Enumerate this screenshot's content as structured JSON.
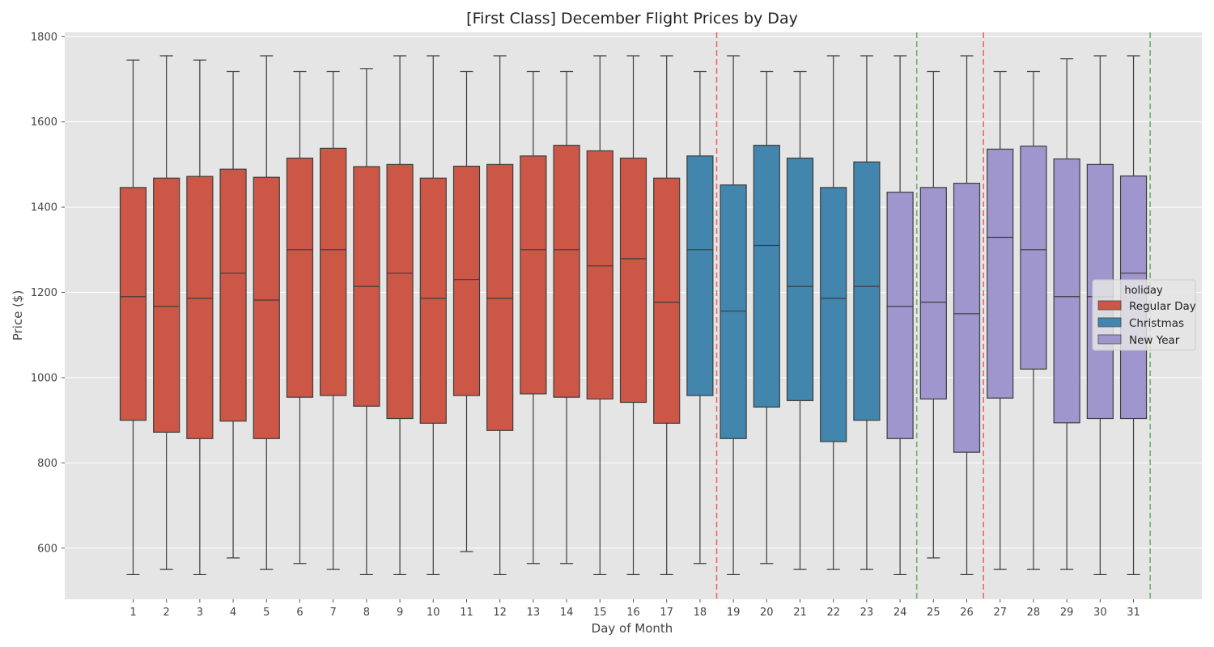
{
  "chart_data": {
    "type": "box",
    "title": "[First Class] December Flight Prices by Day",
    "xlabel": "Day of Month",
    "ylabel": "Price ($)",
    "ylim": [
      480,
      1810
    ],
    "yticks": [
      600,
      800,
      1000,
      1200,
      1400,
      1600,
      1800
    ],
    "grid": true,
    "legend": {
      "title": "holiday",
      "placement": "center-right",
      "entries": [
        {
          "name": "Regular Day",
          "color": "#cc5747"
        },
        {
          "name": "Christmas",
          "color": "#4285ad"
        },
        {
          "name": "New Year",
          "color": "#9e96cc"
        }
      ]
    },
    "reference_lines": [
      {
        "x": 18.5,
        "color": "#ee6666"
      },
      {
        "x": 24.5,
        "color": "#6ab06a"
      },
      {
        "x": 26.5,
        "color": "#ee6666"
      },
      {
        "x": 31.5,
        "color": "#6ab06a"
      }
    ],
    "boxes": [
      {
        "day": "1",
        "holiday": "Regular Day",
        "min": 538,
        "q1": 900,
        "median": 1190,
        "q3": 1446,
        "max": 1745
      },
      {
        "day": "2",
        "holiday": "Regular Day",
        "min": 550,
        "q1": 872,
        "median": 1167,
        "q3": 1468,
        "max": 1755
      },
      {
        "day": "3",
        "holiday": "Regular Day",
        "min": 538,
        "q1": 857,
        "median": 1186,
        "q3": 1472,
        "max": 1745
      },
      {
        "day": "4",
        "holiday": "Regular Day",
        "min": 577,
        "q1": 898,
        "median": 1245,
        "q3": 1489,
        "max": 1718
      },
      {
        "day": "5",
        "holiday": "Regular Day",
        "min": 550,
        "q1": 857,
        "median": 1182,
        "q3": 1470,
        "max": 1755
      },
      {
        "day": "6",
        "holiday": "Regular Day",
        "min": 564,
        "q1": 954,
        "median": 1300,
        "q3": 1515,
        "max": 1718
      },
      {
        "day": "7",
        "holiday": "Regular Day",
        "min": 550,
        "q1": 958,
        "median": 1300,
        "q3": 1538,
        "max": 1718
      },
      {
        "day": "8",
        "holiday": "Regular Day",
        "min": 538,
        "q1": 933,
        "median": 1214,
        "q3": 1495,
        "max": 1725
      },
      {
        "day": "9",
        "holiday": "Regular Day",
        "min": 538,
        "q1": 904,
        "median": 1245,
        "q3": 1500,
        "max": 1755
      },
      {
        "day": "10",
        "holiday": "Regular Day",
        "min": 538,
        "q1": 893,
        "median": 1186,
        "q3": 1468,
        "max": 1755
      },
      {
        "day": "11",
        "holiday": "Regular Day",
        "min": 592,
        "q1": 958,
        "median": 1230,
        "q3": 1496,
        "max": 1718
      },
      {
        "day": "12",
        "holiday": "Regular Day",
        "min": 538,
        "q1": 876,
        "median": 1186,
        "q3": 1500,
        "max": 1755
      },
      {
        "day": "13",
        "holiday": "Regular Day",
        "min": 564,
        "q1": 962,
        "median": 1300,
        "q3": 1520,
        "max": 1718
      },
      {
        "day": "14",
        "holiday": "Regular Day",
        "min": 564,
        "q1": 954,
        "median": 1300,
        "q3": 1545,
        "max": 1718
      },
      {
        "day": "15",
        "holiday": "Regular Day",
        "min": 538,
        "q1": 950,
        "median": 1262,
        "q3": 1532,
        "max": 1755
      },
      {
        "day": "16",
        "holiday": "Regular Day",
        "min": 538,
        "q1": 942,
        "median": 1279,
        "q3": 1515,
        "max": 1755
      },
      {
        "day": "17",
        "holiday": "Regular Day",
        "min": 538,
        "q1": 893,
        "median": 1177,
        "q3": 1468,
        "max": 1755
      },
      {
        "day": "18",
        "holiday": "Christmas",
        "min": 564,
        "q1": 958,
        "median": 1300,
        "q3": 1520,
        "max": 1718
      },
      {
        "day": "19",
        "holiday": "Christmas",
        "min": 538,
        "q1": 857,
        "median": 1156,
        "q3": 1452,
        "max": 1755
      },
      {
        "day": "20",
        "holiday": "Christmas",
        "min": 564,
        "q1": 931,
        "median": 1310,
        "q3": 1545,
        "max": 1718
      },
      {
        "day": "21",
        "holiday": "Christmas",
        "min": 550,
        "q1": 946,
        "median": 1214,
        "q3": 1515,
        "max": 1718
      },
      {
        "day": "22",
        "holiday": "Christmas",
        "min": 550,
        "q1": 850,
        "median": 1186,
        "q3": 1446,
        "max": 1755
      },
      {
        "day": "23",
        "holiday": "Christmas",
        "min": 550,
        "q1": 900,
        "median": 1214,
        "q3": 1506,
        "max": 1755
      },
      {
        "day": "24",
        "holiday": "New Year",
        "min": 538,
        "q1": 857,
        "median": 1167,
        "q3": 1435,
        "max": 1755
      },
      {
        "day": "25",
        "holiday": "New Year",
        "min": 577,
        "q1": 950,
        "median": 1177,
        "q3": 1446,
        "max": 1718
      },
      {
        "day": "26",
        "holiday": "New Year",
        "min": 538,
        "q1": 825,
        "median": 1150,
        "q3": 1456,
        "max": 1755
      },
      {
        "day": "27",
        "holiday": "New Year",
        "min": 550,
        "q1": 952,
        "median": 1329,
        "q3": 1536,
        "max": 1718
      },
      {
        "day": "28",
        "holiday": "New Year",
        "min": 550,
        "q1": 1020,
        "median": 1300,
        "q3": 1543,
        "max": 1718
      },
      {
        "day": "29",
        "holiday": "New Year",
        "min": 550,
        "q1": 894,
        "median": 1190,
        "q3": 1513,
        "max": 1748
      },
      {
        "day": "30",
        "holiday": "New Year",
        "min": 538,
        "q1": 904,
        "median": 1190,
        "q3": 1500,
        "max": 1755
      },
      {
        "day": "31",
        "holiday": "New Year",
        "min": 538,
        "q1": 904,
        "median": 1245,
        "q3": 1473,
        "max": 1755
      }
    ]
  }
}
